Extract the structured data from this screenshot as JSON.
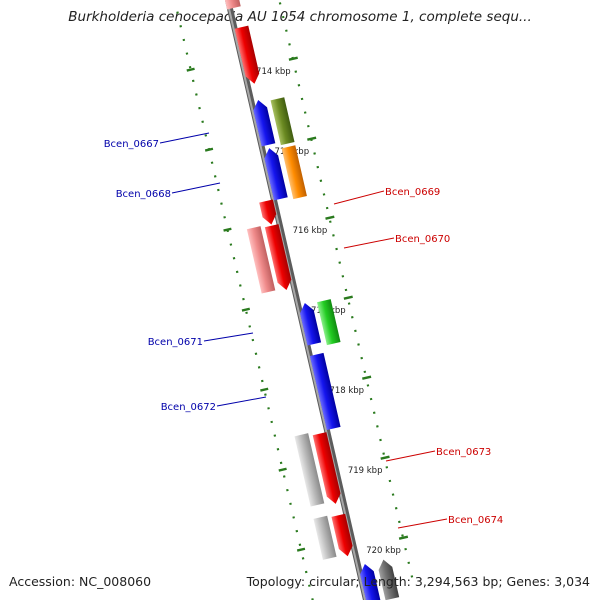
{
  "title": "Burkholderia cenocepacia AU 1054 chromosome 1, complete sequ...",
  "accession": "Accession: NC_008060",
  "summary": "Topology: circular; Length: 3,294,563 bp; Genes: 3,034",
  "colors": {
    "backbone": "#808080",
    "tick": "#2a7a1e",
    "label_blue": "#0000aa",
    "label_red": "#cc0000"
  },
  "ticks": [
    {
      "label": "714 kbp"
    },
    {
      "label": "715 kbp"
    },
    {
      "label": "716 kbp"
    },
    {
      "label": "717 kbp"
    },
    {
      "label": "718 kbp"
    },
    {
      "label": "719 kbp"
    },
    {
      "label": "720 kbp"
    }
  ],
  "gene_labels": [
    {
      "name": "Bcen_0667",
      "side": "left"
    },
    {
      "name": "Bcen_0668",
      "side": "left"
    },
    {
      "name": "Bcen_0669",
      "side": "right"
    },
    {
      "name": "Bcen_0670",
      "side": "right"
    },
    {
      "name": "Bcen_0671",
      "side": "left"
    },
    {
      "name": "Bcen_0672",
      "side": "left"
    },
    {
      "name": "Bcen_0673",
      "side": "right"
    },
    {
      "name": "Bcen_0674",
      "side": "right"
    }
  ]
}
